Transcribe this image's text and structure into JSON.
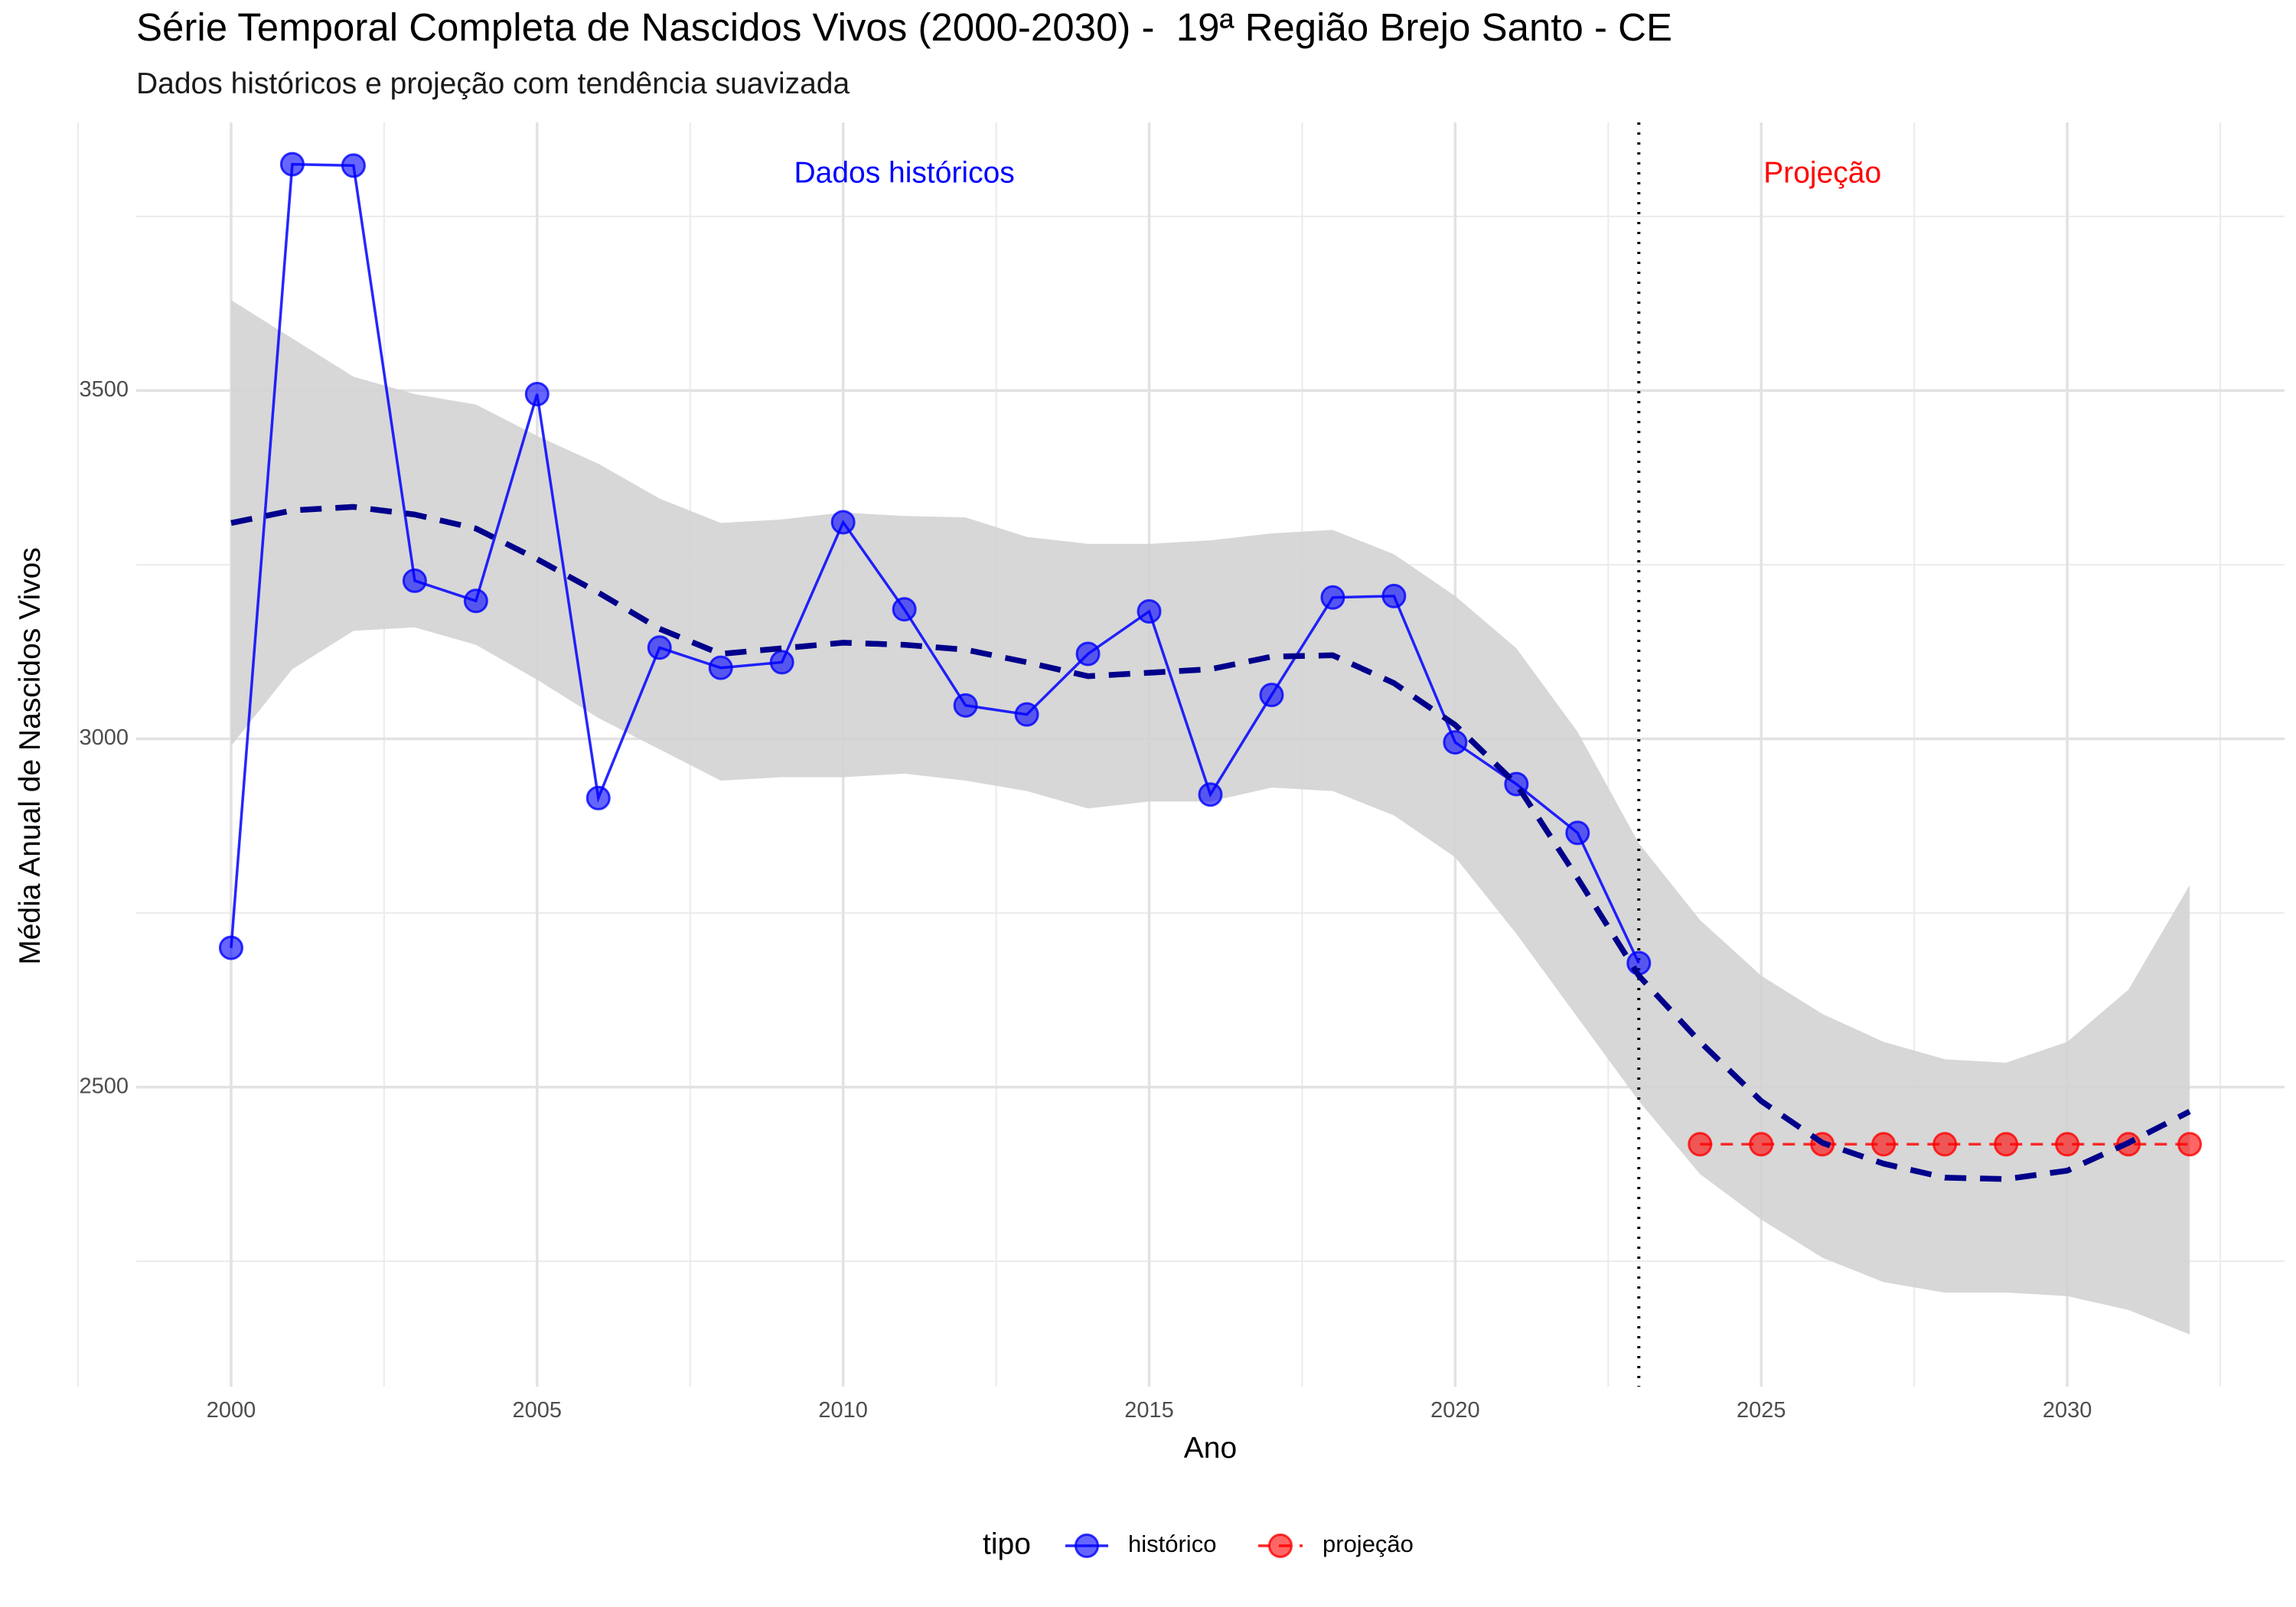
{
  "chart_data": {
    "type": "line",
    "title": "Série Temporal Completa de Nascidos Vivos (2000-2030) -  19ª Região Brejo Santo - CE",
    "subtitle": "Dados históricos e projeção com tendência suavizada",
    "xlabel": "Ano",
    "ylabel": "Média Anual de Nascidos Vivos",
    "xlim": [
      1998.45,
      2033.55
    ],
    "ylim": [
      2070,
      3885
    ],
    "x_ticks": [
      2000,
      2005,
      2010,
      2015,
      2020,
      2025,
      2030
    ],
    "y_ticks": [
      2500,
      3000,
      3500
    ],
    "grid": true,
    "vline": {
      "x": 2023,
      "style": "dotted"
    },
    "annotations": [
      {
        "text": "Dados históricos",
        "x": 2011,
        "y": 3810,
        "color": "#0000ff"
      },
      {
        "text": "Projeção",
        "x": 2026,
        "y": 3810,
        "color": "#ff0000"
      }
    ],
    "series": [
      {
        "name": "histórico",
        "color": "#0000ff",
        "x": [
          2000,
          2001,
          2002,
          2003,
          2004,
          2005,
          2006,
          2007,
          2008,
          2009,
          2010,
          2011,
          2012,
          2013,
          2014,
          2015,
          2016,
          2017,
          2018,
          2019,
          2020,
          2021,
          2022,
          2023
        ],
        "values": [
          2700,
          3825,
          3823,
          3227,
          3198,
          3495,
          2915,
          3131,
          3102,
          3110,
          3311,
          3186,
          3048,
          3035,
          3122,
          3183,
          2920,
          3063,
          3203,
          3205,
          2995,
          2935,
          2865,
          2678
        ]
      },
      {
        "name": "projeção",
        "color": "#ff0000",
        "x": [
          2024,
          2025,
          2026,
          2027,
          2028,
          2029,
          2030,
          2031,
          2032
        ],
        "values": [
          2418,
          2418,
          2418,
          2418,
          2418,
          2418,
          2418,
          2418,
          2418
        ]
      }
    ],
    "smooth": {
      "color": "#00008b",
      "band_color": "#d3d3d3",
      "x": [
        2000,
        2001,
        2002,
        2003,
        2004,
        2005,
        2006,
        2007,
        2008,
        2009,
        2010,
        2011,
        2012,
        2013,
        2014,
        2015,
        2016,
        2017,
        2018,
        2019,
        2020,
        2021,
        2022,
        2023,
        2024,
        2025,
        2026,
        2027,
        2028,
        2029,
        2030,
        2031,
        2032
      ],
      "fit": [
        3310,
        3328,
        3333,
        3322,
        3302,
        3258,
        3210,
        3158,
        3122,
        3130,
        3138,
        3135,
        3128,
        3110,
        3090,
        3095,
        3100,
        3118,
        3120,
        3080,
        3020,
        2935,
        2800,
        2660,
        2565,
        2480,
        2420,
        2390,
        2370,
        2368,
        2380,
        2420,
        2465
      ],
      "lower": [
        2990,
        3100,
        3155,
        3160,
        3135,
        3085,
        3030,
        2985,
        2940,
        2945,
        2945,
        2950,
        2940,
        2925,
        2900,
        2910,
        2910,
        2930,
        2925,
        2890,
        2830,
        2720,
        2600,
        2480,
        2375,
        2310,
        2255,
        2220,
        2205,
        2205,
        2200,
        2180,
        2145
      ],
      "upper": [
        3630,
        3575,
        3520,
        3495,
        3480,
        3435,
        3395,
        3345,
        3310,
        3315,
        3325,
        3320,
        3318,
        3290,
        3280,
        3280,
        3285,
        3295,
        3300,
        3265,
        3205,
        3130,
        3010,
        2850,
        2740,
        2660,
        2605,
        2565,
        2540,
        2535,
        2565,
        2640,
        2790
      ]
    },
    "legend": {
      "title": "tipo",
      "position": "bottom",
      "entries": [
        "histórico",
        "projeção"
      ]
    }
  }
}
